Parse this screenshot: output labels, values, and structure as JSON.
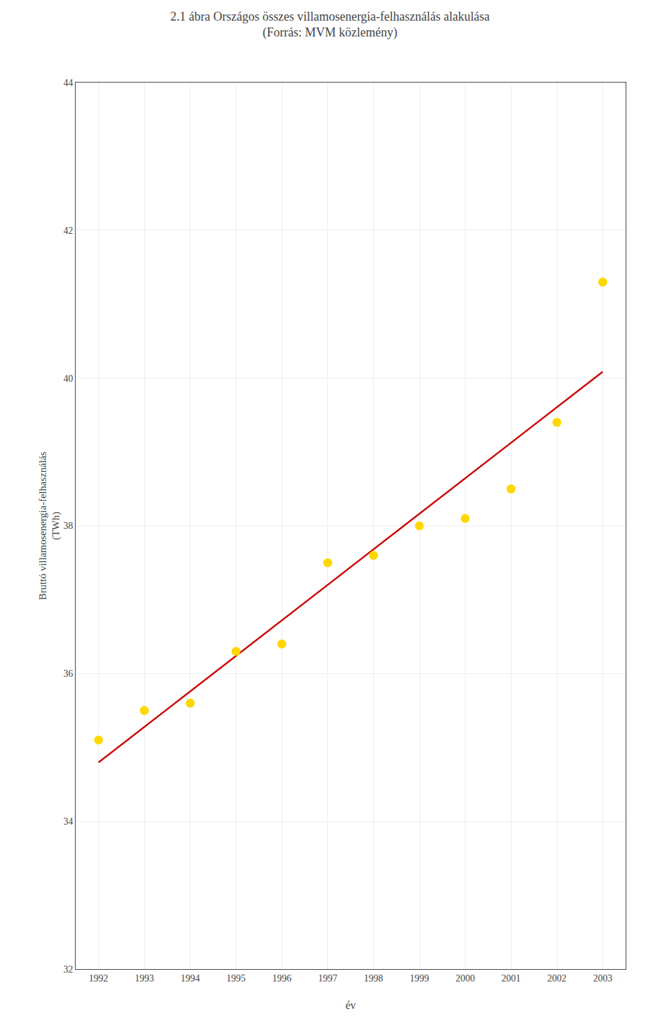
{
  "chart_data": {
    "type": "scatter",
    "title": "2.1 ábra Országos összes villamosenergia-felhasználás alakulása",
    "subtitle": "(Forrás: MVM közlemény)",
    "xlabel": "év",
    "ylabel": "Bruttó villamosenergia-felhasználás\n(TWh)",
    "x": [
      1992,
      1993,
      1994,
      1995,
      1996,
      1997,
      1998,
      1999,
      2000,
      2001,
      2002,
      2003
    ],
    "series": [
      {
        "type": "scatter",
        "marker": "circle",
        "color": "#FFD700",
        "values": [
          35.1,
          35.5,
          35.6,
          36.3,
          36.4,
          37.5,
          37.6,
          38.0,
          38.1,
          38.5,
          39.4,
          41.3
        ]
      },
      {
        "type": "line",
        "line_style": "solid",
        "color": "#CC0000",
        "values": [
          34.7974,
          35.2782,
          35.759,
          36.2397,
          36.7205,
          37.2013,
          37.6821,
          38.1628,
          38.6436,
          39.1244,
          39.6051,
          40.0859
        ]
      }
    ],
    "xlim": [
      1991.5,
      2003.5
    ],
    "xticks": [
      1992,
      1993,
      1994,
      1995,
      1996,
      1997,
      1998,
      1999,
      2000,
      2001,
      2002,
      2003
    ],
    "ylim": [
      32,
      44
    ],
    "yticks": [
      32,
      34,
      36,
      38,
      40,
      42,
      44
    ],
    "grid": true
  }
}
